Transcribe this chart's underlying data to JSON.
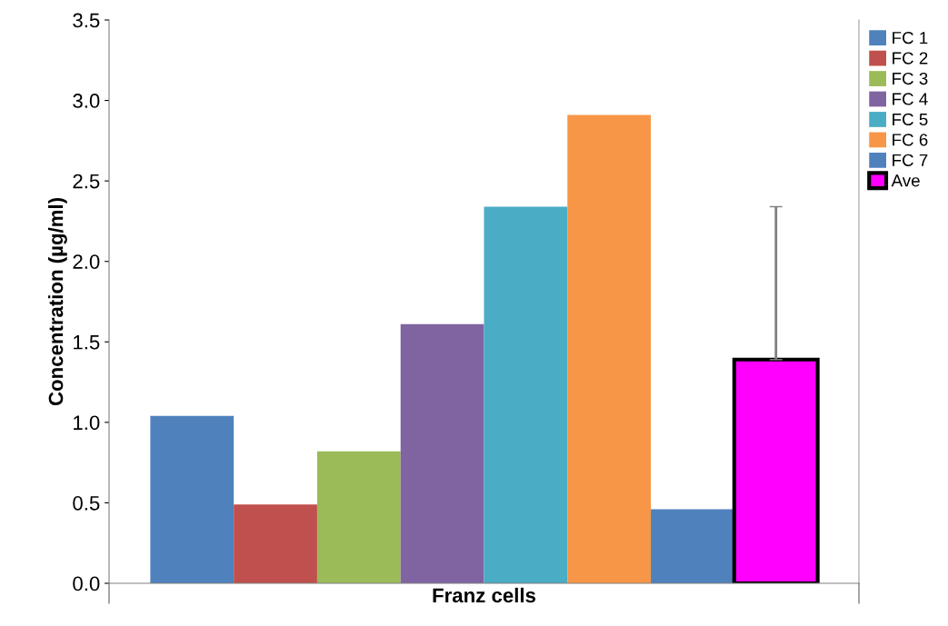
{
  "chart_data": {
    "type": "bar",
    "ylabel": "Concentration (µg/ml)",
    "categories": [
      "Franz cells"
    ],
    "ylim": [
      0,
      3.5
    ],
    "yticks": [
      {
        "value": 0,
        "label": "0.0"
      },
      {
        "value": 0.5,
        "label": "0.5"
      },
      {
        "value": 1,
        "label": "1.0"
      },
      {
        "value": 1.5,
        "label": "1.5"
      },
      {
        "value": 2,
        "label": "2.0"
      },
      {
        "value": 2.5,
        "label": "2.5"
      },
      {
        "value": 3,
        "label": "3.0"
      },
      {
        "value": 3.5,
        "label": "3.5"
      }
    ],
    "grid": false,
    "legend": "right",
    "series": [
      {
        "name": "FC 1",
        "color": "#4f81bd",
        "values": [
          1.04
        ]
      },
      {
        "name": "FC 2",
        "color": "#c0504d",
        "values": [
          0.49
        ]
      },
      {
        "name": "FC 3",
        "color": "#9bbb59",
        "values": [
          0.82
        ]
      },
      {
        "name": "FC 4",
        "color": "#8064a2",
        "values": [
          1.61
        ]
      },
      {
        "name": "FC 5",
        "color": "#4bacc6",
        "values": [
          2.34
        ]
      },
      {
        "name": "FC 6",
        "color": "#f79646",
        "values": [
          2.91
        ]
      },
      {
        "name": "FC 7",
        "color": "#4f81bd",
        "values": [
          0.46
        ]
      },
      {
        "name": "Ave",
        "color": "#ff00ff",
        "values": [
          1.39
        ],
        "errors": [
          [
            1.39,
            2.34
          ]
        ]
      }
    ]
  }
}
